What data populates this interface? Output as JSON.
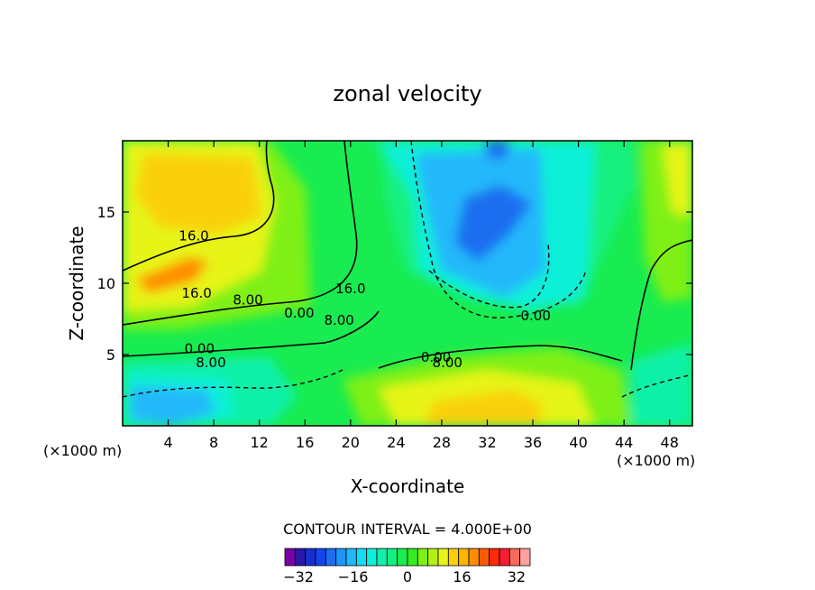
{
  "chart_data": {
    "type": "heatmap",
    "title": "zonal velocity",
    "xlabel": "X-coordinate",
    "ylabel": "Z-coordinate",
    "x_unit_left": "(×1000 m)",
    "x_unit_right": "(×1000 m)",
    "xlim": [
      0,
      50
    ],
    "ylim": [
      0,
      20
    ],
    "x_ticks": [
      4,
      8,
      12,
      16,
      20,
      24,
      28,
      32,
      36,
      40,
      44,
      48
    ],
    "y_ticks": [
      5,
      10,
      15
    ],
    "contour_interval_text": "CONTOUR INTERVAL = 4.000E+00",
    "colorbar": {
      "min": -36,
      "max": 36,
      "step": 4,
      "tick_values": [
        -32,
        -16,
        0,
        16,
        32
      ],
      "tick_labels": [
        "−32",
        "−16",
        "0",
        "16",
        "32"
      ],
      "colors": [
        "#7a00a8",
        "#2a18a8",
        "#1a2ed0",
        "#1446ec",
        "#1a6ef0",
        "#1e96f8",
        "#20b8fa",
        "#14dcf6",
        "#10f0d8",
        "#10f0a8",
        "#14f080",
        "#18ec50",
        "#34ec20",
        "#7ef014",
        "#b4f010",
        "#e6f418",
        "#fad00a",
        "#ffb400",
        "#ff8c00",
        "#ff5a0a",
        "#ff2a0a",
        "#f41e32",
        "#f86a5a",
        "#ffa0a0"
      ]
    },
    "contour_labels": [
      {
        "text": "16.0",
        "x": 12.5,
        "z": 13.0
      },
      {
        "text": "16.0",
        "x": 13.0,
        "z": 9.0
      },
      {
        "text": "8.00",
        "x": 22.0,
        "z": 8.5
      },
      {
        "text": "0.00",
        "x": 13.5,
        "z": 5.1
      },
      {
        "text": "8.00",
        "x": 15.5,
        "z": 4.1
      },
      {
        "text": "0.00",
        "x": 31.0,
        "z": 7.6
      },
      {
        "text": "8.00",
        "x": 38.0,
        "z": 7.1
      },
      {
        "text": "16.0",
        "x": 40.0,
        "z": 9.3
      },
      {
        "text": "0.00",
        "x": 55.0,
        "z": 4.5
      },
      {
        "text": "8.00",
        "x": 57.0,
        "z": 4.1
      },
      {
        "text": "0.00",
        "x": 72.5,
        "z": 7.4
      }
    ]
  }
}
